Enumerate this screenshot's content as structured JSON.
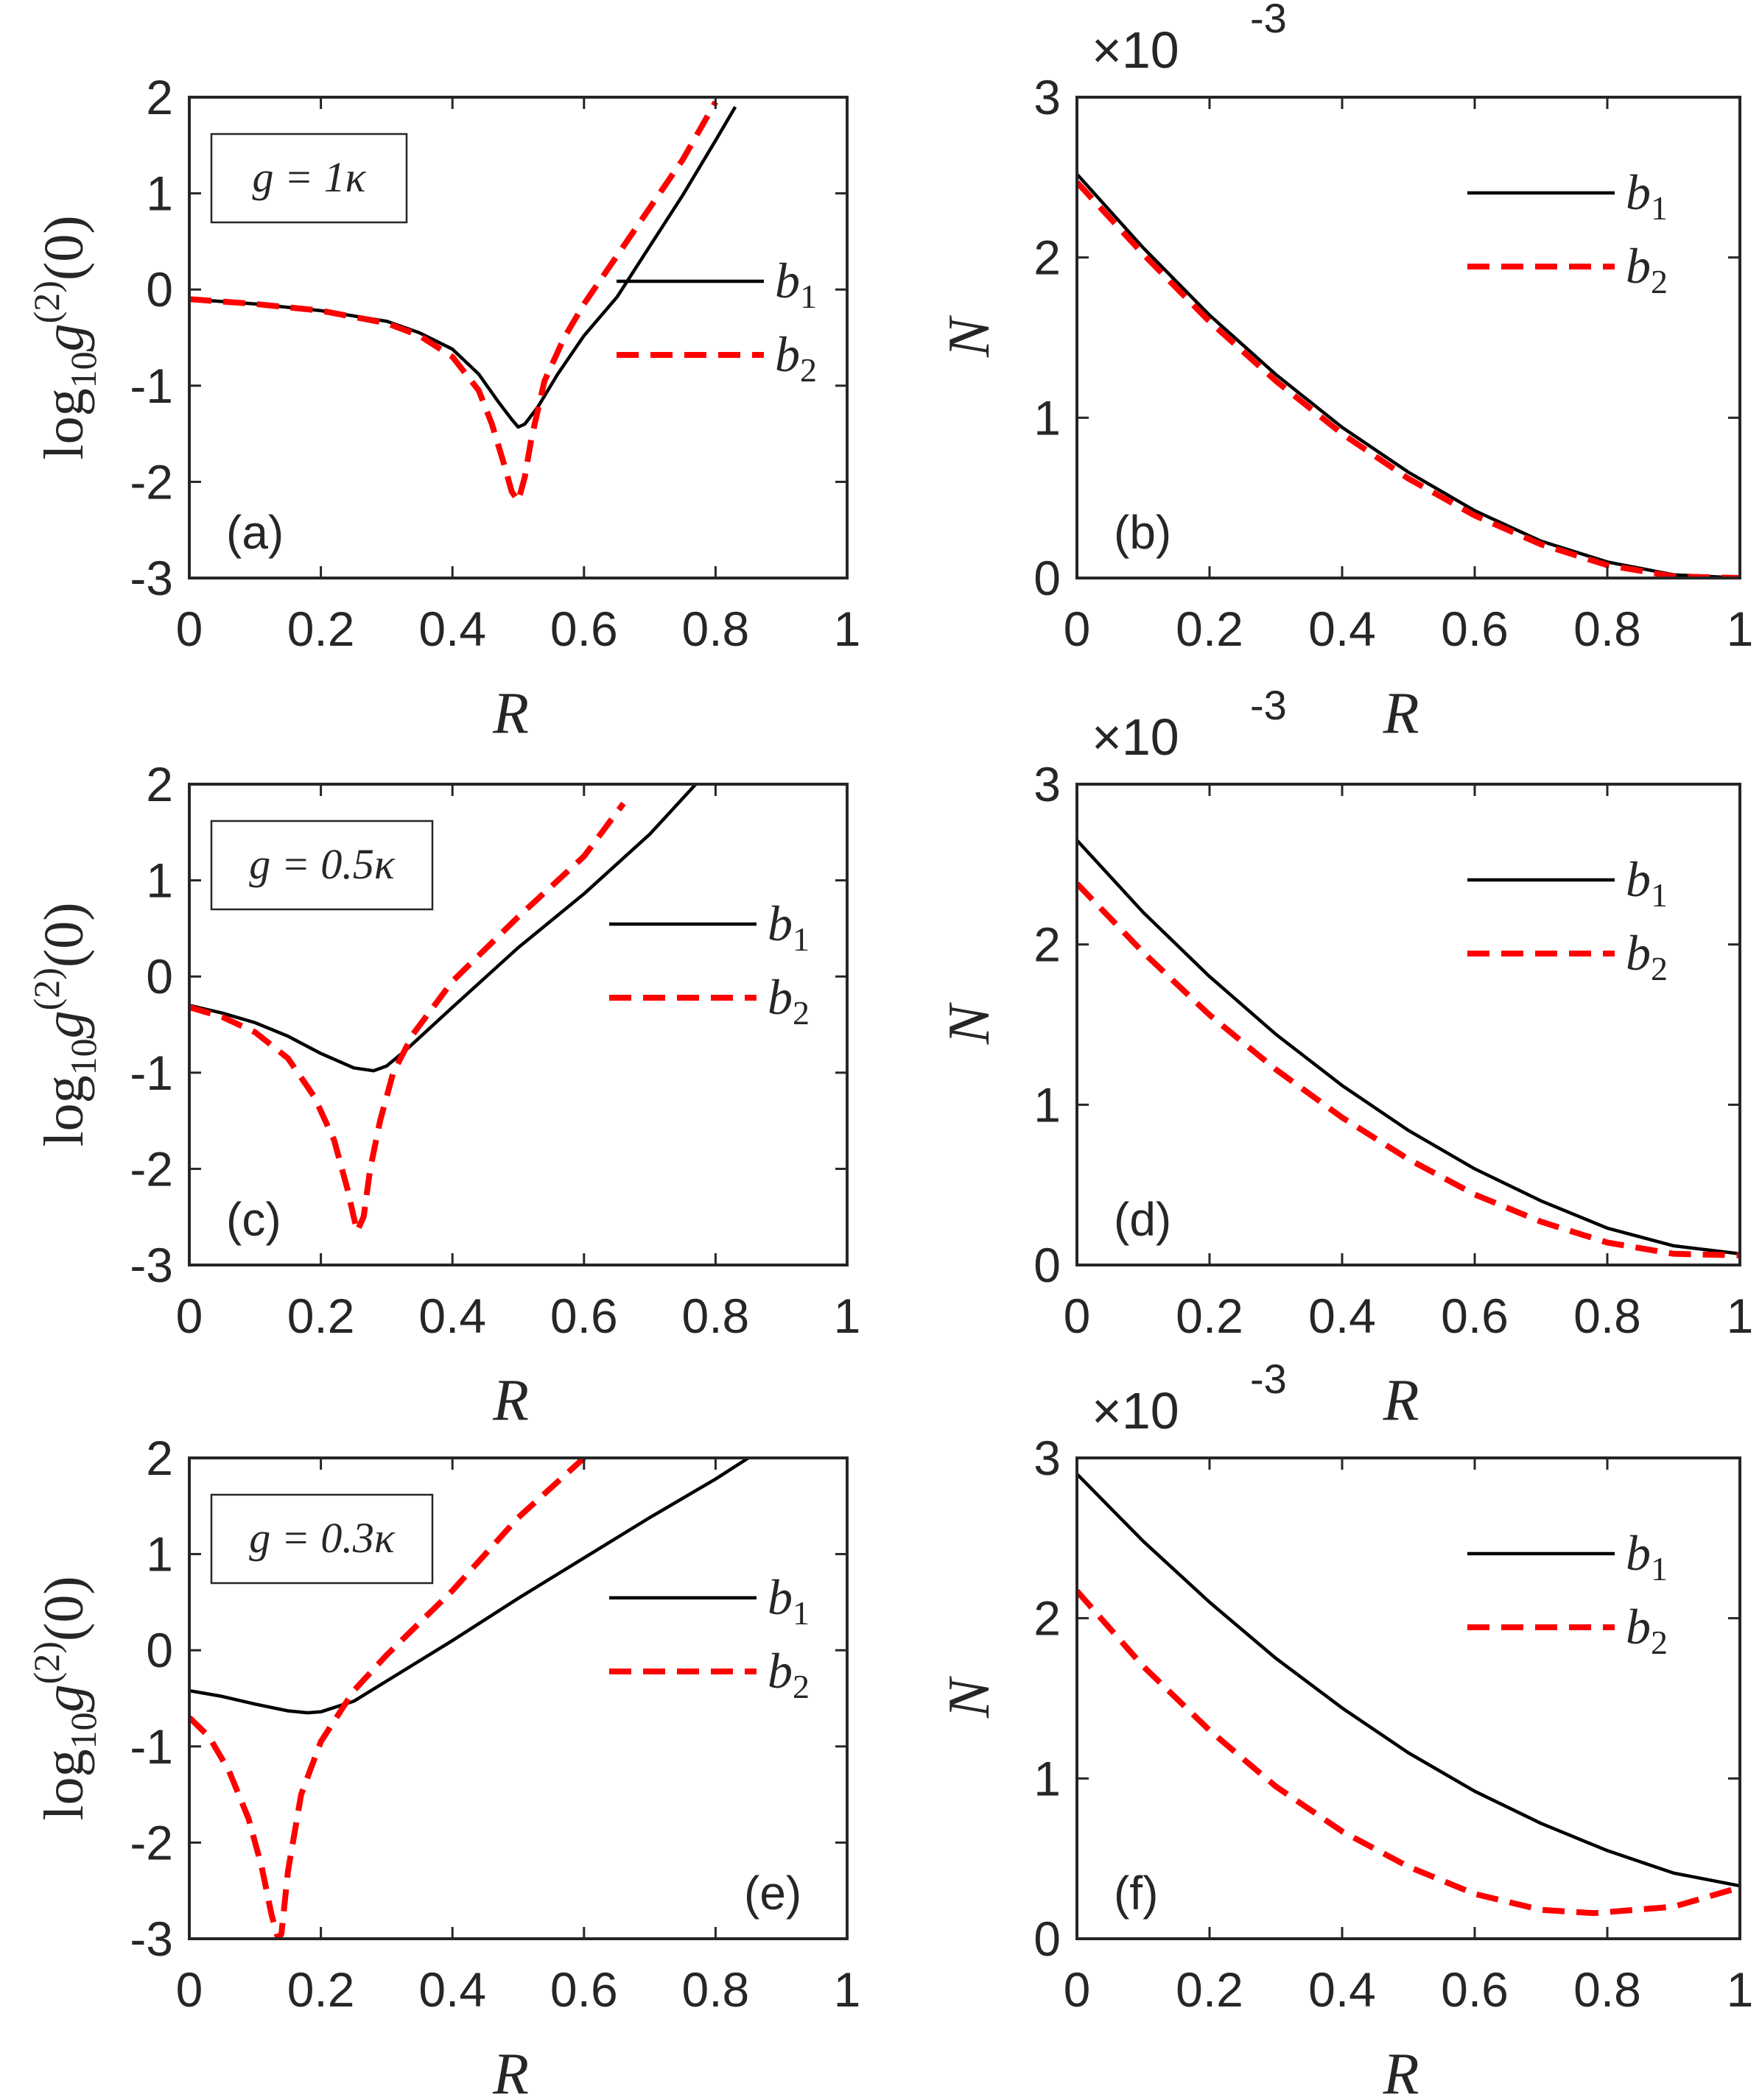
{
  "figure": {
    "panel_labels": [
      "(a)",
      "(b)",
      "(c)",
      "(d)",
      "(e)",
      "(f)"
    ]
  },
  "chart_data": [
    {
      "id": "a",
      "type": "line",
      "label": "(a)",
      "label_pos": "bottom-left",
      "annotation": "g = 1κ",
      "xlabel": "R",
      "ylabel": "log10 g(2)(0)",
      "xlim": [
        0,
        1
      ],
      "ylim": [
        -3,
        2
      ],
      "xticks": [
        "0",
        "0.2",
        "0.4",
        "0.6",
        "0.8",
        "1"
      ],
      "yticks": [
        "-3",
        "-2",
        "-1",
        "0",
        "1",
        "2"
      ],
      "legend": [
        "b1",
        "b2"
      ],
      "legend_placement": "center-right",
      "series": [
        {
          "name": "b1",
          "style": "solid",
          "color": "#000000",
          "x": [
            0,
            0.1,
            0.2,
            0.3,
            0.35,
            0.4,
            0.44,
            0.47,
            0.49,
            0.5,
            0.51,
            0.53,
            0.56,
            0.6,
            0.65,
            0.7,
            0.75,
            0.8,
            0.83
          ],
          "y": [
            -0.1,
            -0.15,
            -0.22,
            -0.33,
            -0.45,
            -0.62,
            -0.88,
            -1.17,
            -1.35,
            -1.43,
            -1.4,
            -1.22,
            -0.88,
            -0.48,
            -0.08,
            0.45,
            0.98,
            1.55,
            1.9
          ]
        },
        {
          "name": "b2",
          "style": "dashed",
          "color": "#ff0000",
          "x": [
            0,
            0.1,
            0.2,
            0.3,
            0.35,
            0.4,
            0.44,
            0.46,
            0.48,
            0.49,
            0.5,
            0.51,
            0.52,
            0.54,
            0.57,
            0.6,
            0.65,
            0.7,
            0.75,
            0.8
          ],
          "y": [
            -0.1,
            -0.15,
            -0.22,
            -0.35,
            -0.48,
            -0.7,
            -1.05,
            -1.4,
            -1.85,
            -2.1,
            -2.2,
            -1.95,
            -1.55,
            -0.95,
            -0.5,
            -0.15,
            0.35,
            0.85,
            1.35,
            1.95
          ]
        }
      ]
    },
    {
      "id": "b",
      "type": "line",
      "label": "(b)",
      "label_pos": "bottom-left",
      "xlabel": "R",
      "ylabel": "N",
      "exponent_label": "×10",
      "exponent": "-3",
      "xlim": [
        0,
        1
      ],
      "ylim": [
        0,
        3
      ],
      "xticks": [
        "0",
        "0.2",
        "0.4",
        "0.6",
        "0.8",
        "1"
      ],
      "yticks": [
        "0",
        "1",
        "2",
        "3"
      ],
      "legend": [
        "b1",
        "b2"
      ],
      "legend_placement": "top-right",
      "series": [
        {
          "name": "b1",
          "style": "solid",
          "color": "#000000",
          "x": [
            0,
            0.1,
            0.2,
            0.3,
            0.4,
            0.5,
            0.6,
            0.7,
            0.8,
            0.9,
            1.0
          ],
          "y": [
            2.52,
            2.06,
            1.64,
            1.27,
            0.94,
            0.66,
            0.42,
            0.23,
            0.1,
            0.02,
            0.0
          ]
        },
        {
          "name": "b2",
          "style": "dashed",
          "color": "#ff0000",
          "x": [
            0,
            0.1,
            0.2,
            0.3,
            0.4,
            0.5,
            0.6,
            0.7,
            0.8,
            0.9,
            1.0
          ],
          "y": [
            2.47,
            2.02,
            1.6,
            1.23,
            0.9,
            0.62,
            0.39,
            0.21,
            0.08,
            0.01,
            0.0
          ]
        }
      ]
    },
    {
      "id": "c",
      "type": "line",
      "label": "(c)",
      "label_pos": "bottom-left",
      "annotation": "g = 0.5κ",
      "xlabel": "R",
      "ylabel": "log10 g(2)(0)",
      "xlim": [
        0,
        1
      ],
      "ylim": [
        -3,
        2
      ],
      "xticks": [
        "0",
        "0.2",
        "0.4",
        "0.6",
        "0.8",
        "1"
      ],
      "yticks": [
        "-3",
        "-2",
        "-1",
        "0",
        "1",
        "2"
      ],
      "legend": [
        "b1",
        "b2"
      ],
      "legend_placement": "top-right",
      "series": [
        {
          "name": "b1",
          "style": "solid",
          "color": "#000000",
          "x": [
            0,
            0.05,
            0.1,
            0.15,
            0.2,
            0.25,
            0.28,
            0.3,
            0.33,
            0.4,
            0.5,
            0.6,
            0.7,
            0.77
          ],
          "y": [
            -0.3,
            -0.38,
            -0.48,
            -0.62,
            -0.8,
            -0.95,
            -0.98,
            -0.93,
            -0.76,
            -0.32,
            0.3,
            0.86,
            1.48,
            2.0
          ]
        },
        {
          "name": "b2",
          "style": "dashed",
          "color": "#ff0000",
          "x": [
            0,
            0.05,
            0.1,
            0.15,
            0.19,
            0.22,
            0.24,
            0.255,
            0.265,
            0.275,
            0.29,
            0.31,
            0.34,
            0.4,
            0.5,
            0.6,
            0.66
          ],
          "y": [
            -0.32,
            -0.42,
            -0.58,
            -0.85,
            -1.25,
            -1.7,
            -2.2,
            -2.65,
            -2.5,
            -2.0,
            -1.5,
            -1.0,
            -0.6,
            -0.05,
            0.62,
            1.25,
            1.8
          ]
        }
      ]
    },
    {
      "id": "d",
      "type": "line",
      "label": "(d)",
      "label_pos": "bottom-left",
      "xlabel": "R",
      "ylabel": "N",
      "exponent_label": "×10",
      "exponent": "-3",
      "xlim": [
        0,
        1
      ],
      "ylim": [
        0,
        3
      ],
      "xticks": [
        "0",
        "0.2",
        "0.4",
        "0.6",
        "0.8",
        "1"
      ],
      "yticks": [
        "0",
        "1",
        "2",
        "3"
      ],
      "legend": [
        "b1",
        "b2"
      ],
      "legend_placement": "top-right",
      "series": [
        {
          "name": "b1",
          "style": "solid",
          "color": "#000000",
          "x": [
            0,
            0.1,
            0.2,
            0.3,
            0.4,
            0.5,
            0.6,
            0.7,
            0.8,
            0.9,
            1.0
          ],
          "y": [
            2.65,
            2.2,
            1.8,
            1.44,
            1.12,
            0.84,
            0.6,
            0.4,
            0.23,
            0.12,
            0.07
          ]
        },
        {
          "name": "b2",
          "style": "dashed",
          "color": "#ff0000",
          "x": [
            0,
            0.1,
            0.2,
            0.3,
            0.4,
            0.5,
            0.6,
            0.7,
            0.8,
            0.9,
            1.0
          ],
          "y": [
            2.38,
            1.95,
            1.56,
            1.22,
            0.92,
            0.66,
            0.44,
            0.27,
            0.14,
            0.07,
            0.06
          ]
        }
      ]
    },
    {
      "id": "e",
      "type": "line",
      "label": "(e)",
      "label_pos": "bottom-right",
      "annotation": "g = 0.3κ",
      "xlabel": "R",
      "ylabel": "log10 g(2)(0)",
      "xlim": [
        0,
        1
      ],
      "ylim": [
        -3,
        2
      ],
      "xticks": [
        "0",
        "0.2",
        "0.4",
        "0.6",
        "0.8",
        "1"
      ],
      "yticks": [
        "-3",
        "-2",
        "-1",
        "0",
        "1",
        "2"
      ],
      "legend": [
        "b1",
        "b2"
      ],
      "legend_placement": "top-right",
      "series": [
        {
          "name": "b1",
          "style": "solid",
          "color": "#000000",
          "x": [
            0,
            0.05,
            0.1,
            0.15,
            0.18,
            0.2,
            0.25,
            0.3,
            0.4,
            0.5,
            0.6,
            0.7,
            0.8,
            0.85
          ],
          "y": [
            -0.42,
            -0.48,
            -0.56,
            -0.63,
            -0.65,
            -0.64,
            -0.53,
            -0.32,
            0.1,
            0.54,
            0.96,
            1.38,
            1.78,
            2.0
          ]
        },
        {
          "name": "b2",
          "style": "dashed",
          "color": "#ff0000",
          "x": [
            0,
            0.03,
            0.06,
            0.09,
            0.11,
            0.125,
            0.135,
            0.14,
            0.15,
            0.17,
            0.2,
            0.25,
            0.3,
            0.4,
            0.5,
            0.6
          ],
          "y": [
            -0.7,
            -0.9,
            -1.25,
            -1.75,
            -2.25,
            -2.75,
            -3.0,
            -2.95,
            -2.3,
            -1.5,
            -0.95,
            -0.42,
            -0.05,
            0.62,
            1.38,
            2.0
          ]
        }
      ]
    },
    {
      "id": "f",
      "type": "line",
      "label": "(f)",
      "label_pos": "bottom-left",
      "xlabel": "R",
      "ylabel": "N",
      "exponent_label": "×10",
      "exponent": "-3",
      "xlim": [
        0,
        1
      ],
      "ylim": [
        0,
        3
      ],
      "xticks": [
        "0",
        "0.2",
        "0.4",
        "0.6",
        "0.8",
        "1"
      ],
      "yticks": [
        "0",
        "1",
        "2",
        "3"
      ],
      "legend": [
        "b1",
        "b2"
      ],
      "legend_placement": "top-right",
      "series": [
        {
          "name": "b1",
          "style": "solid",
          "color": "#000000",
          "x": [
            0,
            0.1,
            0.2,
            0.3,
            0.4,
            0.5,
            0.6,
            0.7,
            0.8,
            0.9,
            1.0
          ],
          "y": [
            2.9,
            2.48,
            2.1,
            1.75,
            1.44,
            1.16,
            0.92,
            0.72,
            0.55,
            0.41,
            0.33
          ]
        },
        {
          "name": "b2",
          "style": "dashed",
          "color": "#ff0000",
          "x": [
            0,
            0.1,
            0.2,
            0.3,
            0.4,
            0.5,
            0.6,
            0.7,
            0.78,
            0.9,
            1.0
          ],
          "y": [
            2.17,
            1.7,
            1.3,
            0.95,
            0.67,
            0.45,
            0.28,
            0.18,
            0.16,
            0.2,
            0.32
          ]
        }
      ]
    }
  ]
}
